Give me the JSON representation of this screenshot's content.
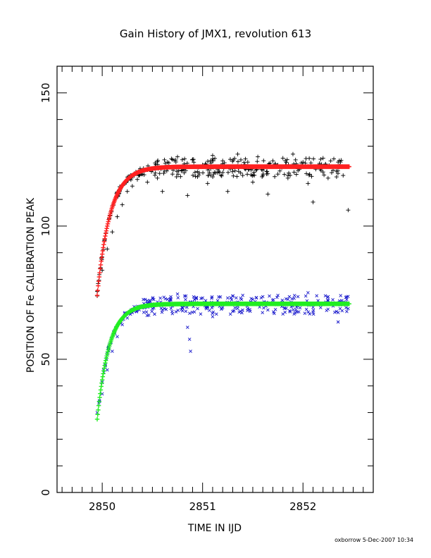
{
  "chart_data": {
    "type": "scatter",
    "title": "Gain History of JMX1, revolution 613",
    "xlabel": "TIME IN IJD",
    "ylabel": "POSITION OF Fe CALIBRATION PEAK",
    "xlim": [
      2849.55,
      2852.7
    ],
    "ylim": [
      0,
      160
    ],
    "x_ticks": [
      2850,
      2851,
      2852
    ],
    "y_ticks": [
      0,
      50,
      100,
      150
    ],
    "grid": false,
    "legend": "none",
    "series": [
      {
        "marker": "plus",
        "color": "#000000",
        "x_range": [
          2849.95,
          2852.46
        ],
        "model": {
          "plateau": 122.3,
          "start": 74.0,
          "tau": 0.13
        },
        "points": [
          [
            2849.95,
            75.5
          ],
          [
            2850.0,
            83.4
          ],
          [
            2850.05,
            91.4
          ],
          [
            2850.1,
            97.8
          ],
          [
            2850.15,
            103.5
          ],
          [
            2850.2,
            108.0
          ],
          [
            2850.25,
            113.0
          ],
          [
            2850.3,
            115.0
          ],
          [
            2850.35,
            117.5
          ],
          [
            2850.4,
            119.5
          ],
          [
            2850.45,
            116.5
          ],
          [
            2850.5,
            121.0
          ],
          [
            2850.55,
            118.0
          ],
          [
            2850.6,
            113.0
          ],
          [
            2850.65,
            124.0
          ],
          [
            2850.7,
            119.5
          ],
          [
            2850.75,
            126.0
          ],
          [
            2850.8,
            121.0
          ],
          [
            2850.85,
            111.5
          ],
          [
            2850.9,
            125.0
          ],
          [
            2850.95,
            118.5
          ],
          [
            2851.0,
            123.0
          ],
          [
            2851.05,
            116.0
          ],
          [
            2851.1,
            126.5
          ],
          [
            2851.15,
            120.0
          ],
          [
            2851.2,
            124.5
          ],
          [
            2851.25,
            113.0
          ],
          [
            2851.3,
            121.5
          ],
          [
            2851.35,
            127.0
          ],
          [
            2851.4,
            119.0
          ],
          [
            2851.45,
            124.0
          ],
          [
            2851.5,
            116.5
          ],
          [
            2851.55,
            126.0
          ],
          [
            2851.6,
            121.0
          ],
          [
            2851.65,
            112.0
          ],
          [
            2851.7,
            124.5
          ],
          [
            2851.75,
            119.5
          ],
          [
            2851.8,
            125.5
          ],
          [
            2851.85,
            118.0
          ],
          [
            2851.9,
            127.0
          ],
          [
            2851.95,
            121.5
          ],
          [
            2852.0,
            124.0
          ],
          [
            2852.05,
            116.0
          ],
          [
            2852.1,
            109.0
          ],
          [
            2852.15,
            122.5
          ],
          [
            2852.2,
            125.5
          ],
          [
            2852.25,
            118.0
          ],
          [
            2852.3,
            121.0
          ],
          [
            2852.35,
            124.0
          ],
          [
            2852.4,
            119.0
          ],
          [
            2852.45,
            106.0
          ]
        ]
      },
      {
        "marker": "cross",
        "color": "#1a1acc",
        "x_range": [
          2849.95,
          2852.46
        ],
        "model": {
          "plateau": 70.8,
          "start": 27.5,
          "tau": 0.12
        },
        "points": [
          [
            2849.95,
            30.0
          ],
          [
            2850.0,
            37.0
          ],
          [
            2850.05,
            46.0
          ],
          [
            2850.1,
            53.0
          ],
          [
            2850.15,
            58.5
          ],
          [
            2850.2,
            63.0
          ],
          [
            2850.25,
            65.5
          ],
          [
            2850.3,
            67.5
          ],
          [
            2850.35,
            68.5
          ],
          [
            2850.4,
            70.0
          ],
          [
            2850.45,
            72.0
          ],
          [
            2850.5,
            69.0
          ],
          [
            2850.55,
            71.5
          ],
          [
            2850.6,
            68.5
          ],
          [
            2850.65,
            72.5
          ],
          [
            2850.7,
            70.0
          ],
          [
            2850.75,
            74.5
          ],
          [
            2850.8,
            69.5
          ],
          [
            2850.85,
            62.0
          ],
          [
            2850.87,
            57.5
          ],
          [
            2850.88,
            53.0
          ],
          [
            2850.9,
            71.5
          ],
          [
            2850.95,
            69.0
          ],
          [
            2851.0,
            73.0
          ],
          [
            2851.05,
            70.0
          ],
          [
            2851.1,
            66.0
          ],
          [
            2851.15,
            72.0
          ],
          [
            2851.2,
            69.5
          ],
          [
            2851.25,
            73.0
          ],
          [
            2851.3,
            68.0
          ],
          [
            2851.35,
            71.5
          ],
          [
            2851.4,
            74.0
          ],
          [
            2851.45,
            69.0
          ],
          [
            2851.5,
            72.5
          ],
          [
            2851.55,
            70.5
          ],
          [
            2851.6,
            73.5
          ],
          [
            2851.65,
            68.5
          ],
          [
            2851.7,
            71.0
          ],
          [
            2851.75,
            74.0
          ],
          [
            2851.8,
            67.0
          ],
          [
            2851.85,
            72.5
          ],
          [
            2851.9,
            70.0
          ],
          [
            2851.95,
            73.5
          ],
          [
            2852.0,
            71.0
          ],
          [
            2852.05,
            75.0
          ],
          [
            2852.1,
            69.5
          ],
          [
            2852.15,
            72.0
          ],
          [
            2852.2,
            70.5
          ],
          [
            2852.25,
            73.5
          ],
          [
            2852.3,
            70.0
          ],
          [
            2852.35,
            64.0
          ],
          [
            2852.4,
            71.5
          ],
          [
            2852.45,
            69.0
          ]
        ]
      },
      {
        "name": "",
        "line": "fit-upper",
        "color": "#ff2020",
        "model": {
          "plateau": 122.3,
          "start": 74.0,
          "tau": 0.13
        },
        "x_range": [
          2849.95,
          2852.46
        ]
      },
      {
        "name": "",
        "line": "fit-lower",
        "color": "#22ee22",
        "model": {
          "plateau": 70.8,
          "start": 27.5,
          "tau": 0.12
        },
        "x_range": [
          2849.95,
          2852.46
        ]
      }
    ]
  },
  "footer": {
    "stamp": "oxborrow 5-Dec-2007 10:34"
  }
}
